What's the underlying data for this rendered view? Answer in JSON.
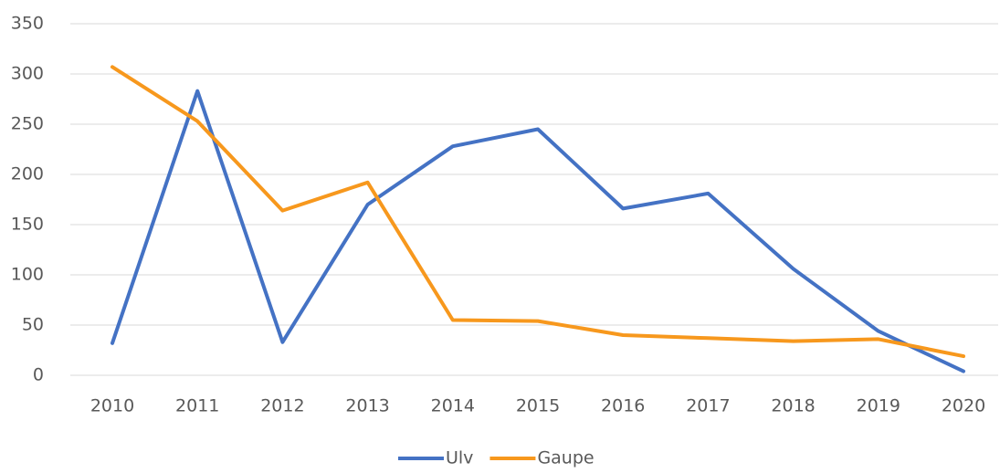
{
  "chart_data": {
    "type": "line",
    "categories": [
      "2010",
      "2011",
      "2012",
      "2013",
      "2014",
      "2015",
      "2016",
      "2017",
      "2018",
      "2019",
      "2020"
    ],
    "series": [
      {
        "name": "Ulv",
        "color": "#4472c4",
        "values": [
          32,
          283,
          33,
          170,
          228,
          245,
          166,
          181,
          106,
          44,
          4
        ]
      },
      {
        "name": "Gaupe",
        "color": "#f7981d",
        "values": [
          307,
          253,
          164,
          192,
          55,
          54,
          40,
          37,
          34,
          36,
          19
        ]
      }
    ],
    "ylim": [
      0,
      350
    ],
    "yticks": [
      0,
      50,
      100,
      150,
      200,
      250,
      300,
      350
    ],
    "grid": true,
    "legend": "bottom"
  }
}
